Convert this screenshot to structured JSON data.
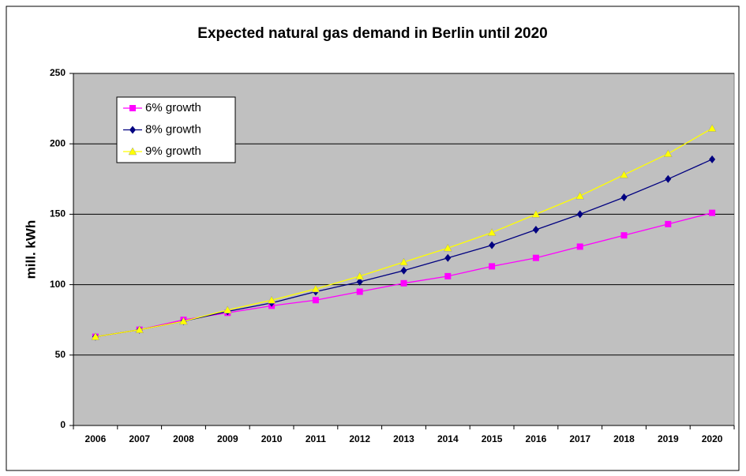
{
  "chart_data": {
    "type": "line",
    "title": "Expected natural gas demand in Berlin until 2020",
    "y_label": "mill. kWh",
    "categories": [
      "2006",
      "2007",
      "2008",
      "2009",
      "2010",
      "2011",
      "2012",
      "2013",
      "2014",
      "2015",
      "2016",
      "2017",
      "2018",
      "2019",
      "2020"
    ],
    "series": [
      {
        "name": "6% growth",
        "color": "#ff00ff",
        "marker": "square",
        "values": [
          63,
          68,
          75,
          80,
          85,
          89,
          95,
          101,
          106,
          113,
          119,
          127,
          135,
          143,
          151
        ]
      },
      {
        "name": "8% growth",
        "color": "#000080",
        "marker": "diamond",
        "values": [
          63,
          68,
          74,
          81,
          87,
          95,
          102,
          110,
          119,
          128,
          139,
          150,
          162,
          175,
          189
        ]
      },
      {
        "name": "9% growth",
        "color": "#ffff00",
        "marker": "triangle",
        "values": [
          63,
          68,
          74,
          82,
          89,
          97,
          106,
          116,
          126,
          137,
          150,
          163,
          178,
          193,
          211
        ]
      }
    ],
    "ylim": [
      0,
      250
    ],
    "yticks": [
      0,
      50,
      100,
      150,
      200,
      250
    ],
    "grid": true,
    "legend": "upper left"
  }
}
